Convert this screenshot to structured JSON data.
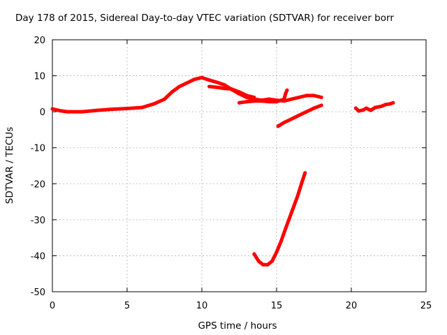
{
  "chart_data": {
    "type": "line",
    "title": "Day 178 of 2015, Sidereal Day-to-day VTEC variation (SDTVAR) for receiver borr",
    "xlabel": "GPS time / hours",
    "ylabel": "SDTVAR / TECUs",
    "xlim": [
      0,
      25
    ],
    "ylim": [
      -50,
      20
    ],
    "xticks": [
      0,
      5,
      10,
      15,
      20,
      25
    ],
    "yticks": [
      20,
      10,
      0,
      -10,
      -20,
      -30,
      -40,
      -50
    ],
    "grid": true,
    "color": "#ff0000",
    "series": [
      {
        "values": [
          [
            0.0,
            0.8
          ],
          [
            0.5,
            0.3
          ],
          [
            1.0,
            0.0
          ],
          [
            2.0,
            0.0
          ],
          [
            3.0,
            0.4
          ],
          [
            4.0,
            0.7
          ],
          [
            5.0,
            0.9
          ],
          [
            6.0,
            1.2
          ],
          [
            6.8,
            2.2
          ],
          [
            7.5,
            3.5
          ],
          [
            8.0,
            5.5
          ],
          [
            8.5,
            7.0
          ],
          [
            9.0,
            8.0
          ],
          [
            9.5,
            9.0
          ],
          [
            10.0,
            9.5
          ],
          [
            10.5,
            8.8
          ],
          [
            11.0,
            8.2
          ],
          [
            11.5,
            7.5
          ],
          [
            12.0,
            6.2
          ],
          [
            12.5,
            5.0
          ],
          [
            13.0,
            4.0
          ],
          [
            13.5,
            3.5
          ],
          [
            14.0,
            3.2
          ],
          [
            14.5,
            3.5
          ],
          [
            15.0,
            3.2
          ],
          [
            15.5,
            3.0
          ],
          [
            16.0,
            3.5
          ],
          [
            16.5,
            4.0
          ],
          [
            17.0,
            4.5
          ],
          [
            17.5,
            4.5
          ],
          [
            18.0,
            4.0
          ]
        ]
      },
      {
        "values": [
          [
            10.5,
            7.0
          ],
          [
            11.0,
            6.8
          ],
          [
            11.5,
            6.5
          ],
          [
            12.0,
            6.3
          ],
          [
            12.5,
            5.5
          ],
          [
            13.0,
            4.5
          ],
          [
            13.5,
            4.0
          ]
        ]
      },
      {
        "values": [
          [
            12.5,
            2.5
          ],
          [
            13.0,
            2.8
          ],
          [
            13.5,
            3.0
          ],
          [
            14.0,
            3.0
          ],
          [
            14.5,
            2.8
          ],
          [
            15.0,
            2.8
          ],
          [
            15.5,
            3.5
          ],
          [
            15.6,
            5.0
          ],
          [
            15.7,
            6.0
          ]
        ]
      },
      {
        "values": [
          [
            15.1,
            -4.0
          ],
          [
            15.5,
            -3.0
          ],
          [
            16.0,
            -2.0
          ],
          [
            16.5,
            -1.0
          ],
          [
            17.0,
            0.0
          ],
          [
            17.5,
            1.0
          ],
          [
            18.0,
            1.8
          ]
        ]
      },
      {
        "values": [
          [
            13.5,
            -39.5
          ],
          [
            13.8,
            -41.5
          ],
          [
            14.1,
            -42.5
          ],
          [
            14.4,
            -42.5
          ],
          [
            14.7,
            -41.5
          ],
          [
            15.0,
            -39.0
          ],
          [
            15.3,
            -36.0
          ],
          [
            15.6,
            -32.5
          ],
          [
            16.0,
            -28.0
          ],
          [
            16.4,
            -23.5
          ],
          [
            16.7,
            -19.5
          ],
          [
            16.9,
            -17.0
          ]
        ]
      },
      {
        "values": [
          [
            20.3,
            1.0
          ],
          [
            20.5,
            0.2
          ],
          [
            20.8,
            0.5
          ],
          [
            21.0,
            1.0
          ],
          [
            21.3,
            0.4
          ],
          [
            21.6,
            1.2
          ],
          [
            22.0,
            1.5
          ],
          [
            22.3,
            2.0
          ],
          [
            22.6,
            2.2
          ],
          [
            22.8,
            2.5
          ]
        ]
      }
    ]
  }
}
